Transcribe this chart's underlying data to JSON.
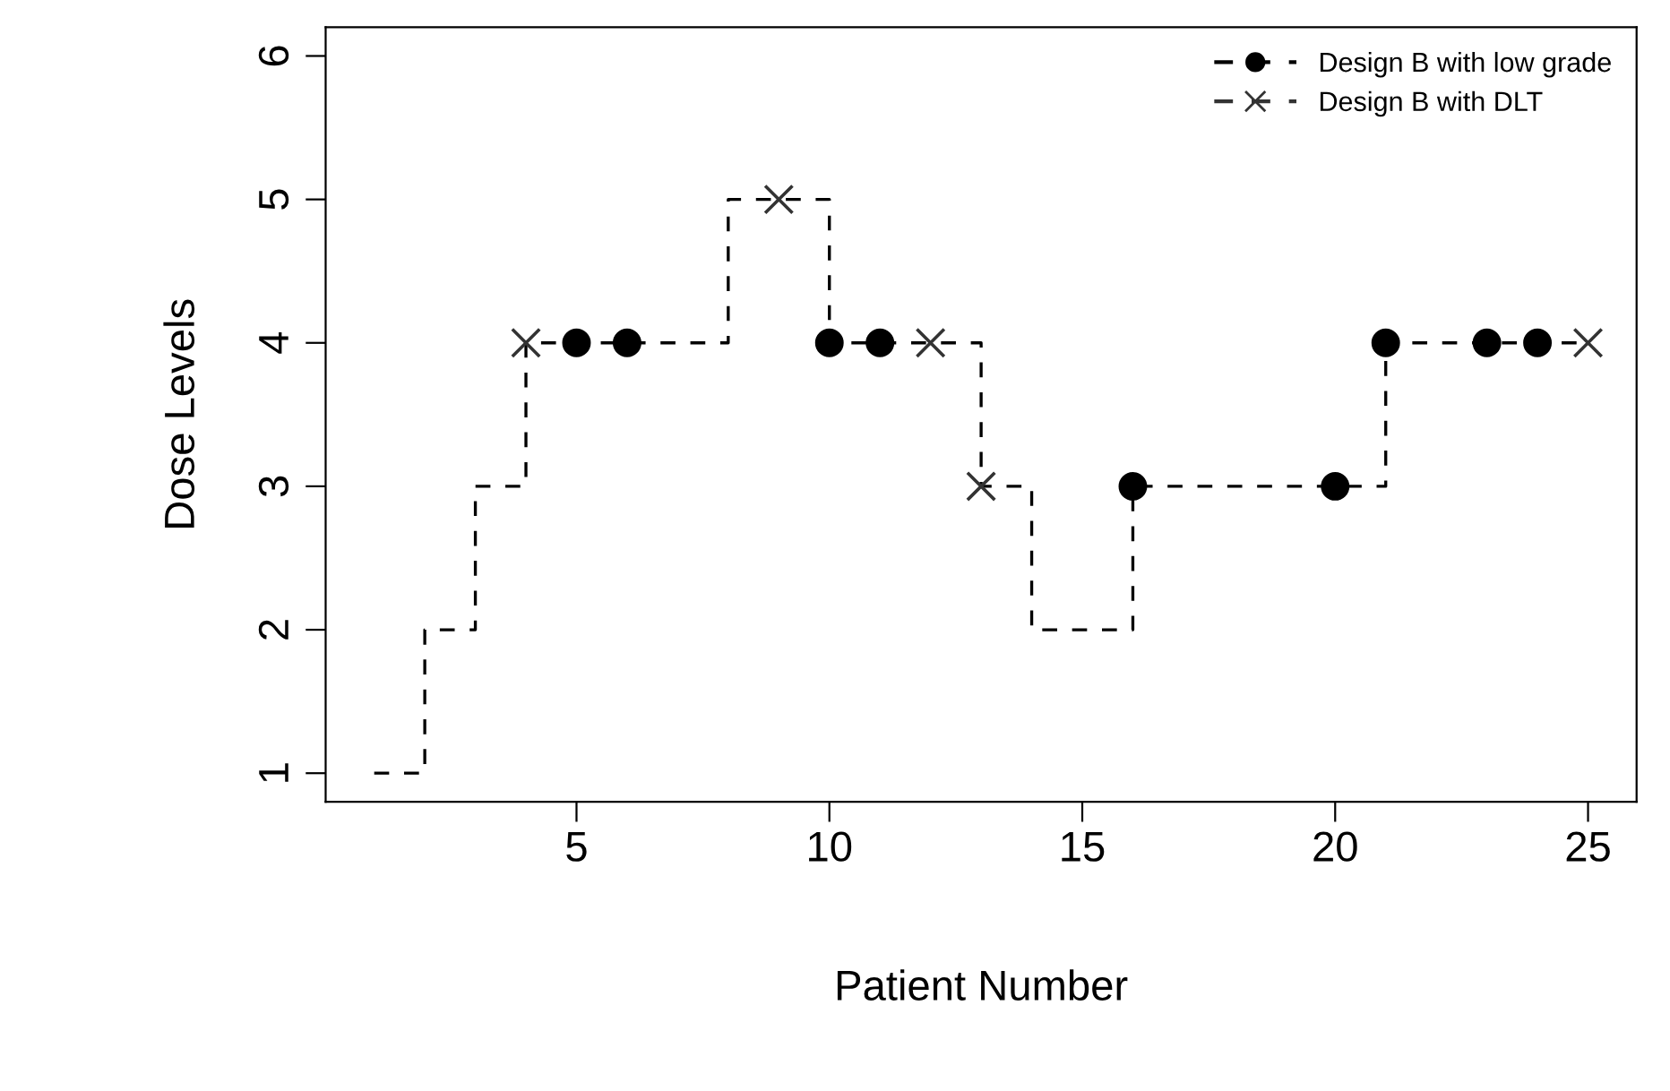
{
  "chart_data": {
    "type": "step",
    "xlabel": "Patient Number",
    "ylabel": "Dose Levels",
    "xlim": [
      0.04,
      25.96
    ],
    "ylim": [
      0.8,
      6.2
    ],
    "xticks": [
      5,
      10,
      15,
      20,
      25
    ],
    "yticks": [
      1,
      2,
      3,
      4,
      5,
      6
    ],
    "grid": false,
    "legend": "top right",
    "series": [
      {
        "color": "#000000",
        "line_style": "dashed",
        "marker": "none",
        "x": [
          1,
          2,
          3,
          4,
          5,
          6,
          7,
          8,
          9,
          10,
          11,
          12,
          13,
          14,
          15,
          16,
          17,
          18,
          19,
          20,
          21,
          22,
          23,
          24,
          25
        ],
        "values": [
          1,
          2,
          3,
          4,
          4,
          4,
          4,
          5,
          5,
          4,
          4,
          4,
          3,
          2,
          2,
          3,
          3,
          3,
          3,
          3,
          4,
          4,
          4,
          4,
          4
        ]
      },
      {
        "type": "scatter",
        "name": "Design B with low grade",
        "color": "#000000",
        "marker": "circle",
        "x": [
          5,
          6,
          10,
          11,
          16,
          20,
          21,
          23,
          24
        ],
        "values": [
          4,
          4,
          4,
          4,
          3,
          3,
          4,
          4,
          4
        ]
      },
      {
        "type": "scatter",
        "name": "Design B with DLT",
        "color": "#333333",
        "marker": "cross",
        "x": [
          4,
          9,
          12,
          13,
          25
        ],
        "values": [
          4,
          5,
          4,
          3,
          4
        ]
      }
    ]
  }
}
